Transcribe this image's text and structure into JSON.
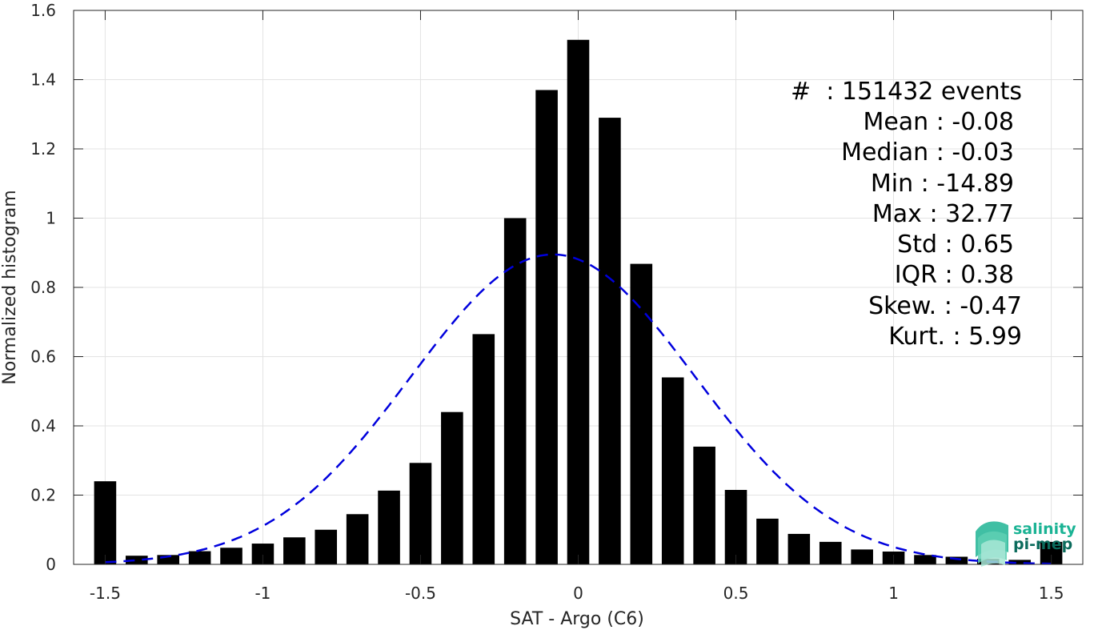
{
  "chart_data": {
    "type": "bar",
    "xlabel": "SAT - Argo (C6)",
    "ylabel": "Normalized histogram",
    "xlim": [
      -1.6,
      1.6
    ],
    "ylim": [
      0,
      1.6
    ],
    "xticks": [
      -1.5,
      -1,
      -0.5,
      0,
      0.5,
      1,
      1.5
    ],
    "xtick_labels": [
      "-1.5",
      "-1",
      "-0.5",
      "0",
      "0.5",
      "1",
      "1.5"
    ],
    "yticks": [
      0,
      0.2,
      0.4,
      0.6,
      0.8,
      1.0,
      1.2,
      1.4,
      1.6
    ],
    "ytick_labels": [
      "0",
      "0.2",
      "0.4",
      "0.6",
      "0.8",
      "1",
      "1.2",
      "1.4",
      "1.6"
    ],
    "grid": true,
    "bar_color": "#000000",
    "bar_width": 0.07,
    "bins": [
      -1.5,
      -1.4,
      -1.3,
      -1.2,
      -1.1,
      -1.0,
      -0.9,
      -0.8,
      -0.7,
      -0.6,
      -0.5,
      -0.4,
      -0.3,
      -0.2,
      -0.1,
      0.0,
      0.1,
      0.2,
      0.3,
      0.4,
      0.5,
      0.6,
      0.7,
      0.8,
      0.9,
      1.0,
      1.1,
      1.2,
      1.3,
      1.4,
      1.5
    ],
    "values": [
      0.24,
      0.025,
      0.027,
      0.038,
      0.048,
      0.06,
      0.078,
      0.1,
      0.145,
      0.213,
      0.293,
      0.44,
      0.665,
      1.0,
      1.37,
      1.515,
      1.29,
      0.868,
      0.54,
      0.34,
      0.215,
      0.132,
      0.088,
      0.065,
      0.043,
      0.037,
      0.027,
      0.022,
      0.016,
      0.013,
      0.065
    ],
    "fit_curve": {
      "type": "gaussian",
      "mean": -0.08,
      "std": 0.45,
      "peak": 0.895,
      "color": "#0000dd",
      "style": "dashed"
    },
    "annotations": [
      "#  : 151432 events",
      "Mean : -0.08",
      "Median : -0.03",
      "Min : -14.89",
      "Max : 32.77",
      "Std : 0.65",
      "IQR : 0.38",
      "Skew. : -0.47",
      "Kurt. : 5.99"
    ]
  },
  "logo": {
    "line1": "salinity",
    "line2": "pi-mep",
    "color_primary": "#1ab394",
    "color_dark": "#0b6b5c"
  }
}
